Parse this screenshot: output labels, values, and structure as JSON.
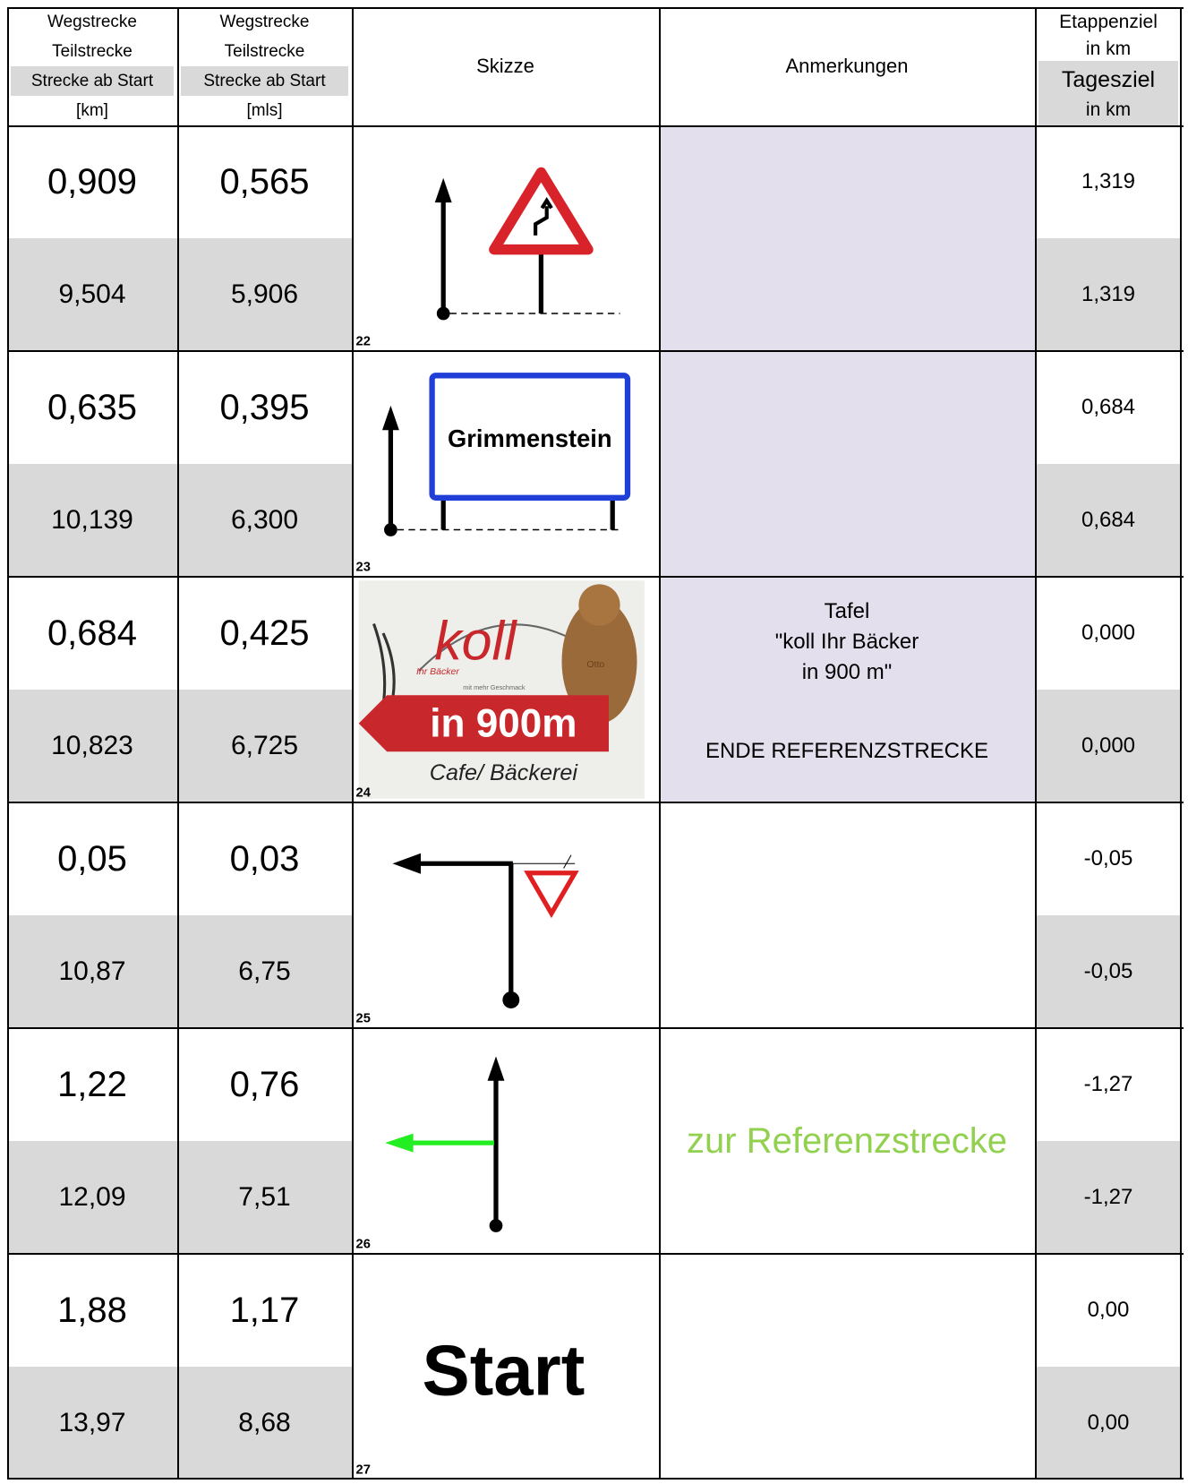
{
  "header": {
    "section_km": [
      "Wegstrecke",
      "Teilstrecke",
      "Strecke ab Start",
      "[km]"
    ],
    "section_mls": [
      "Wegstrecke",
      "Teilstrecke",
      "Strecke ab Start",
      "[mls]"
    ],
    "sketch": "Skizze",
    "notes": "Anmerkungen",
    "targets": [
      "Etappenziel",
      "in km",
      "Tagesziel",
      "in km"
    ]
  },
  "rows": [
    {
      "section_km": "0,909",
      "section_mls": "0,565",
      "total_km": "9,504",
      "total_mls": "5,906",
      "sketch": {
        "kind": "curve-sign",
        "number": "22"
      },
      "stage": "1,319",
      "day": "1,319"
    },
    {
      "section_km": "0,635",
      "section_mls": "0,395",
      "total_km": "10,139",
      "total_mls": "6,300",
      "sketch": {
        "kind": "town-sign",
        "number": "23",
        "texts": [
          "Grimmenstein"
        ]
      },
      "stage": "0,684",
      "day": "0,684"
    },
    {
      "section_km": "0,684",
      "section_mls": "0,425",
      "total_km": "10,823",
      "total_mls": "6,725",
      "sketch": {
        "kind": "photo",
        "number": "24",
        "texts": [
          "koll",
          "Ihr Bäcker",
          "mit mehr Geschmack",
          "in 900m",
          "Cafe/ Bäckerei",
          "Otto"
        ]
      },
      "notes": [
        "Tafel",
        "\"koll Ihr Bäcker",
        "in 900 m\"",
        "ENDE REFERENZSTRECKE"
      ],
      "stage": "0,000",
      "day": "0,000"
    },
    {
      "section_km": "0,05",
      "section_mls": "0,03",
      "total_km": "10,87",
      "total_mls": "6,75",
      "sketch": {
        "kind": "turn-left-yield",
        "number": "25"
      },
      "stage": "-0,05",
      "day": "-0,05"
    },
    {
      "section_km": "1,22",
      "section_mls": "0,76",
      "total_km": "12,09",
      "total_mls": "7,51",
      "sketch": {
        "kind": "straight-green-left",
        "number": "26"
      },
      "notes": [
        "zur Referenzstrecke"
      ],
      "stage": "-1,27",
      "day": "-1,27"
    },
    {
      "section_km": "1,88",
      "section_mls": "1,17",
      "total_km": "13,97",
      "total_mls": "8,68",
      "sketch": {
        "kind": "start",
        "number": "27",
        "texts": [
          "Start"
        ]
      },
      "stage": "0,00",
      "day": "0,00"
    }
  ]
}
